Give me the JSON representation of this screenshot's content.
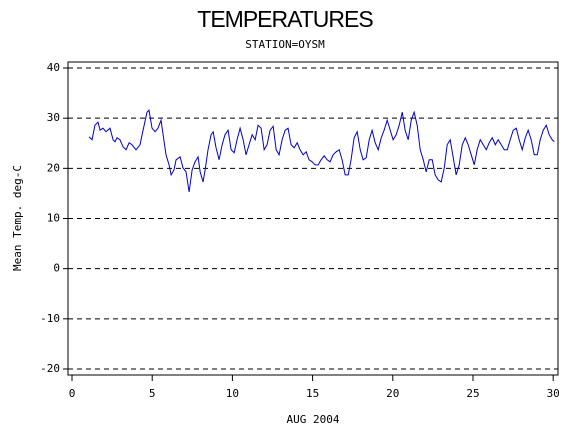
{
  "chart_data": {
    "type": "line",
    "title": "TEMPERATURES",
    "subtitle": "STATION=OYSM",
    "x_label": "AUG 2004",
    "y_label": "Mean Temp. deg-C",
    "color": "#0000cc",
    "grid": true,
    "xlim": [
      -0.25,
      30.3
    ],
    "ylim": [
      -21.2,
      41.2
    ],
    "xticks": [
      0,
      5,
      10,
      15,
      20,
      25,
      30
    ],
    "yticks": [
      -20,
      -10,
      0,
      10,
      20,
      30,
      40
    ],
    "x": [
      1.06,
      1.25,
      1.43,
      1.62,
      1.75,
      1.93,
      2.12,
      2.37,
      2.56,
      2.68,
      2.81,
      2.99,
      3.18,
      3.37,
      3.56,
      3.74,
      3.99,
      4.24,
      4.43,
      4.68,
      4.8,
      4.99,
      5.18,
      5.36,
      5.55,
      5.68,
      5.86,
      6.05,
      6.18,
      6.36,
      6.49,
      6.74,
      6.92,
      7.11,
      7.3,
      7.49,
      7.67,
      7.86,
      7.99,
      8.17,
      8.3,
      8.48,
      8.67,
      8.8,
      8.98,
      9.17,
      9.36,
      9.54,
      9.73,
      9.92,
      10.11,
      10.29,
      10.48,
      10.67,
      10.85,
      11.04,
      11.23,
      11.42,
      11.6,
      11.79,
      11.98,
      12.16,
      12.35,
      12.54,
      12.73,
      12.91,
      13.1,
      13.29,
      13.47,
      13.66,
      13.85,
      14.04,
      14.22,
      14.41,
      14.6,
      14.78,
      14.97,
      15.16,
      15.35,
      15.53,
      15.72,
      15.91,
      16.09,
      16.28,
      16.47,
      16.66,
      16.84,
      17.03,
      17.22,
      17.4,
      17.59,
      17.78,
      17.97,
      18.15,
      18.34,
      18.53,
      18.71,
      18.9,
      19.09,
      19.28,
      19.46,
      19.65,
      19.84,
      20.02,
      20.21,
      20.4,
      20.59,
      20.77,
      20.96,
      21.15,
      21.33,
      21.52,
      21.71,
      21.9,
      22.08,
      22.27,
      22.46,
      22.64,
      22.83,
      23.02,
      23.21,
      23.39,
      23.58,
      23.77,
      23.95,
      24.14,
      24.33,
      24.52,
      24.7,
      24.89,
      25.08,
      25.26,
      25.45,
      25.64,
      25.83,
      26.01,
      26.2,
      26.39,
      26.57,
      26.76,
      26.95,
      27.14,
      27.32,
      27.51,
      27.7,
      27.88,
      28.07,
      28.26,
      28.44,
      28.63,
      28.82,
      29.01,
      29.19,
      29.38,
      29.57,
      29.75,
      29.94,
      30.07
    ],
    "values": [
      26.3,
      25.7,
      28.6,
      29.2,
      27.6,
      28.0,
      27.3,
      28.0,
      25.7,
      25.3,
      26.1,
      25.7,
      24.3,
      23.7,
      25.1,
      24.7,
      23.7,
      24.7,
      27.6,
      31.2,
      31.6,
      28.0,
      27.3,
      28.0,
      29.6,
      26.7,
      22.7,
      20.7,
      18.7,
      19.7,
      21.7,
      22.3,
      20.1,
      19.3,
      15.3,
      19.7,
      21.3,
      22.3,
      19.3,
      17.3,
      19.7,
      23.7,
      26.7,
      27.3,
      24.1,
      21.7,
      24.7,
      26.7,
      27.6,
      23.7,
      23.1,
      25.7,
      28.0,
      25.7,
      22.7,
      24.7,
      26.7,
      25.7,
      28.6,
      28.0,
      23.7,
      24.7,
      27.6,
      28.4,
      23.7,
      22.7,
      25.7,
      27.6,
      28.0,
      24.7,
      24.1,
      25.1,
      23.7,
      22.7,
      23.3,
      21.7,
      21.3,
      20.7,
      20.7,
      21.7,
      22.5,
      21.7,
      21.3,
      22.7,
      23.3,
      23.7,
      21.7,
      18.7,
      18.7,
      21.7,
      26.1,
      27.3,
      23.7,
      21.7,
      22.1,
      25.7,
      27.6,
      25.1,
      23.7,
      26.1,
      27.6,
      29.6,
      27.6,
      25.7,
      26.7,
      28.6,
      31.2,
      27.6,
      25.7,
      29.6,
      31.2,
      28.6,
      23.7,
      21.7,
      19.3,
      21.7,
      21.7,
      18.7,
      17.7,
      17.3,
      20.1,
      24.7,
      25.7,
      22.1,
      18.7,
      20.7,
      24.7,
      26.1,
      24.7,
      22.7,
      20.7,
      23.7,
      25.7,
      24.7,
      23.7,
      25.1,
      26.1,
      24.7,
      25.7,
      24.7,
      23.7,
      23.7,
      25.7,
      27.6,
      28.0,
      25.7,
      23.7,
      26.1,
      27.6,
      25.7,
      22.7,
      22.7,
      25.7,
      27.6,
      28.6,
      26.7,
      25.7,
      25.3
    ]
  }
}
